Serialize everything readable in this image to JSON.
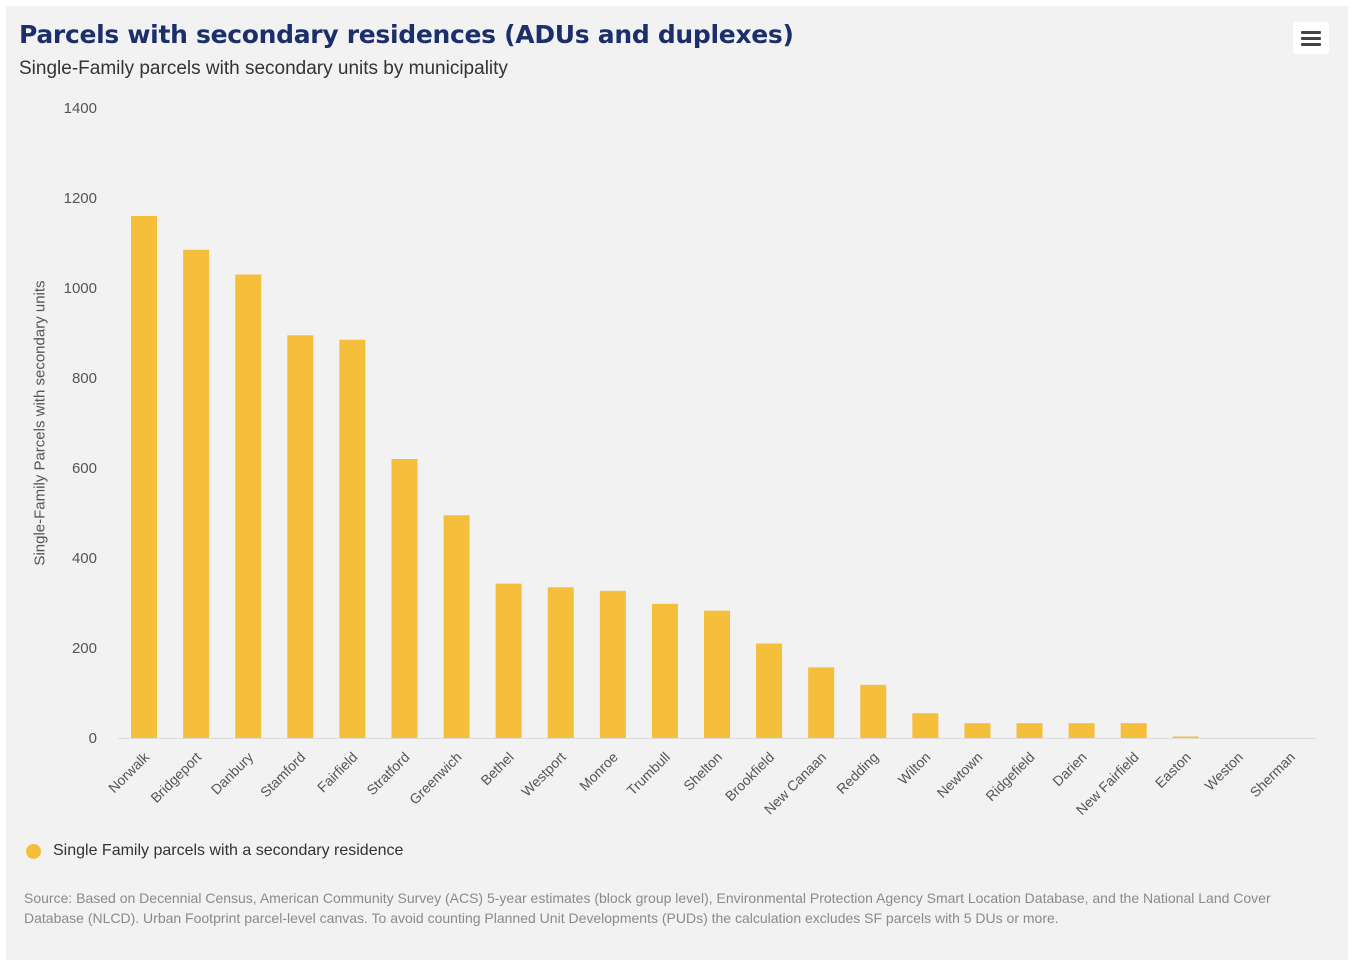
{
  "header": {
    "title": "Parcels with secondary residences (ADUs and duplexes)",
    "subtitle": "Single-Family parcels with secondary units by municipality",
    "menu_icon": "hamburger-menu-icon"
  },
  "chart_data": {
    "type": "bar",
    "title": "Parcels with secondary residences (ADUs and duplexes)",
    "subtitle": "Single-Family parcels with secondary units by municipality",
    "xlabel": "",
    "ylabel": "Single-Family Parcels with secondary units",
    "ylim": [
      0,
      1400
    ],
    "yticks": [
      "0",
      "200",
      "400",
      "600",
      "800",
      "1000",
      "1200",
      "1400"
    ],
    "grid": false,
    "legend_placement": "bottom-left",
    "color": "#f5bf3c",
    "categories": [
      "Norwalk",
      "Bridgeport",
      "Danbury",
      "Stamford",
      "Fairfield",
      "Stratford",
      "Greenwich",
      "Bethel",
      "Westport",
      "Monroe",
      "Trumbull",
      "Shelton",
      "Brookfield",
      "New Canaan",
      "Redding",
      "Wilton",
      "Newtown",
      "Ridgefield",
      "Darien",
      "New Fairfield",
      "Easton",
      "Weston",
      "Sherman"
    ],
    "series": [
      {
        "name": "Single Family parcels with a secondary residence",
        "values": [
          1160,
          1085,
          1030,
          895,
          885,
          620,
          495,
          343,
          335,
          327,
          298,
          283,
          210,
          157,
          118,
          55,
          33,
          33,
          33,
          33,
          3,
          0,
          0
        ]
      }
    ]
  },
  "legend": {
    "label": "Single Family parcels with a secondary residence"
  },
  "source": "Source: Based on Decennial Census, American Community Survey (ACS) 5-year estimates (block group level), Environmental Protection Agency Smart Location Database, and the National Land Cover Database (NLCD). Urban Footprint parcel-level canvas. To avoid counting Planned Unit Developments (PUDs) the calculation excludes SF parcels with 5 DUs or more."
}
